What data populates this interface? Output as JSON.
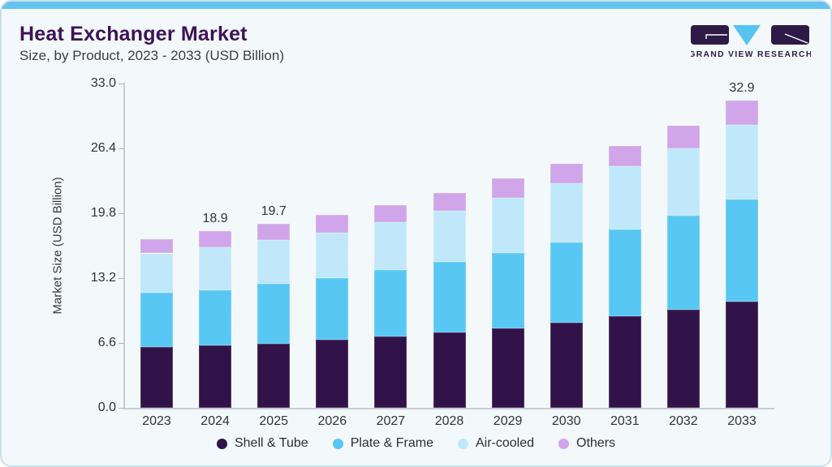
{
  "header": {
    "title": "Heat Exchanger Market",
    "subtitle": "Size, by Product, 2023 - 2033 (USD Billion)",
    "logo_brand": "GRAND VIEW RESEARCH"
  },
  "colors": {
    "accent_bar": "#63C3EF",
    "card_background": "#F3F8FB",
    "card_border": "#CBDFEC",
    "title_purple": "#3D1356",
    "logo_purple": "#2E1A47",
    "logo_triangle_blue": "#55C5F0",
    "axis_gray": "#C6CCD3"
  },
  "chart_data": {
    "type": "bar",
    "stacked": true,
    "title": "Heat Exchanger Market Size, by Product, 2023 - 2033 (USD Billion)",
    "categories": [
      "2023",
      "2024",
      "2025",
      "2026",
      "2027",
      "2028",
      "2029",
      "2030",
      "2031",
      "2032",
      "2033"
    ],
    "series": [
      {
        "name": "Shell & Tube",
        "color": "#321349",
        "values": [
          6.5,
          6.7,
          6.9,
          7.3,
          7.65,
          8.1,
          8.55,
          9.1,
          9.8,
          10.55,
          11.4
        ]
      },
      {
        "name": "Plate & Frame",
        "color": "#58C7F3",
        "values": [
          5.8,
          5.9,
          6.35,
          6.6,
          7.1,
          7.55,
          8.05,
          8.65,
          9.3,
          10.0,
          10.95
        ]
      },
      {
        "name": "Air-cooled",
        "color": "#C0E8FA",
        "values": [
          4.25,
          4.6,
          4.7,
          4.9,
          5.15,
          5.45,
          5.9,
          6.3,
          6.75,
          7.25,
          7.95
        ]
      },
      {
        "name": "Others",
        "color": "#D0A5E9",
        "values": [
          1.55,
          1.7,
          1.75,
          1.85,
          1.85,
          1.9,
          2.1,
          2.1,
          2.2,
          2.4,
          2.6
        ]
      }
    ],
    "totals": [
      18.1,
      18.9,
      19.7,
      20.65,
      21.75,
      23.0,
      24.6,
      26.15,
      28.05,
      30.2,
      32.9
    ],
    "bar_top_labels": [
      "",
      "18.9",
      "19.7",
      "",
      "",
      "",
      "",
      "",
      "",
      "",
      "32.9"
    ],
    "xlabel": "",
    "ylabel": "Market Size (USD Billion)",
    "yticks": [
      "0.0",
      "6.6",
      "13.2",
      "19.8",
      "26.4",
      "33.0"
    ],
    "ylim": [
      0,
      33.0
    ],
    "grid": false,
    "legend_position": "bottom"
  }
}
